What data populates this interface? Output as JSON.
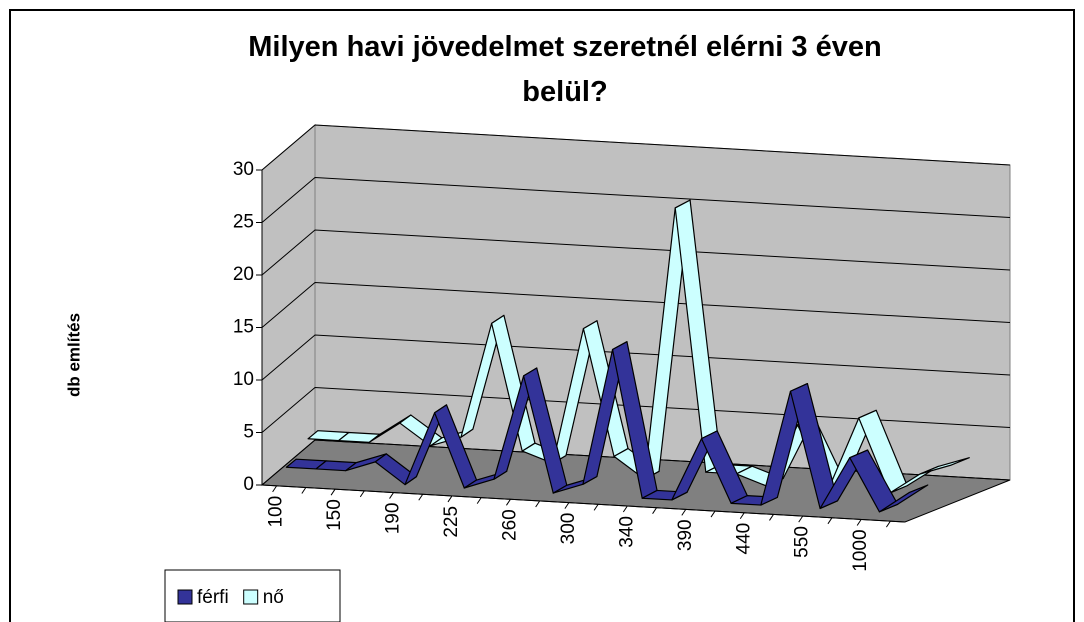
{
  "chart_data": {
    "type": "line3d",
    "title": "Milyen havi jövedelmet szeretnél elérni 3 éven belül?",
    "y_label": "db említés",
    "categories": [
      "100",
      null,
      "150",
      null,
      "190",
      null,
      "225",
      null,
      "260",
      null,
      "300",
      null,
      "340",
      null,
      "390",
      null,
      "440",
      null,
      "550",
      null,
      "1000",
      null
    ],
    "series": [
      {
        "name": "férfi",
        "color": "#333399",
        "values": [
          1,
          1,
          1,
          2,
          0,
          7,
          0,
          1,
          11,
          0,
          1,
          14,
          0,
          0,
          6,
          0,
          0,
          11,
          0,
          5,
          0,
          2
        ]
      },
      {
        "name": "nő",
        "color": "#ccffff",
        "values": [
          2,
          2,
          2,
          4,
          2,
          3,
          14,
          2,
          1,
          14,
          2,
          0,
          26,
          1,
          1,
          0,
          6,
          0,
          7,
          0,
          2,
          3
        ]
      }
    ],
    "ylim": [
      0,
      30
    ],
    "yticks": [
      0,
      5,
      10,
      15,
      20,
      25,
      30
    ],
    "grid": true,
    "legend": "bottom-left"
  }
}
